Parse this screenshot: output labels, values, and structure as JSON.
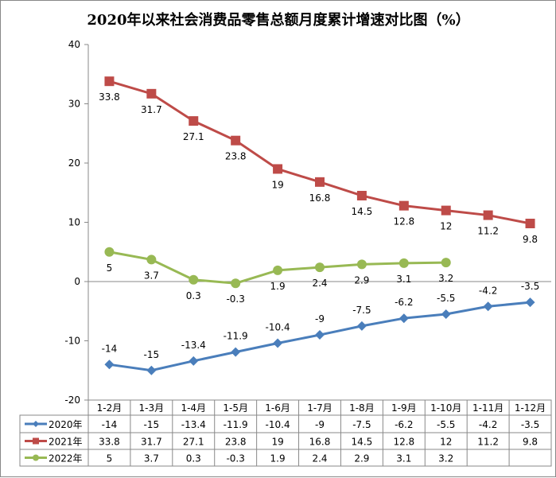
{
  "chart_data": {
    "type": "line",
    "title": "2020年以来社会消费品零售总额月度累计增速对比图（%）",
    "categories": [
      "1-2月",
      "1-3月",
      "1-4月",
      "1-5月",
      "1-6月",
      "1-7月",
      "1-8月",
      "1-9月",
      "1-10月",
      "1-11月",
      "1-12月"
    ],
    "ylim": [
      -20,
      40
    ],
    "yticks": [
      -20,
      -10,
      0,
      10,
      20,
      30,
      40
    ],
    "grid": false,
    "legend": "data-table",
    "series": [
      {
        "name": "2020年",
        "color": "#4a7ebb",
        "marker": "diamond",
        "values": [
          -14,
          -15,
          -13.4,
          -11.9,
          -10.4,
          -9,
          -7.5,
          -6.2,
          -5.5,
          -4.2,
          -3.5
        ]
      },
      {
        "name": "2021年",
        "color": "#be4b48",
        "marker": "square",
        "values": [
          33.8,
          31.7,
          27.1,
          23.8,
          19,
          16.8,
          14.5,
          12.8,
          12,
          11.2,
          9.8
        ]
      },
      {
        "name": "2022年",
        "color": "#98b954",
        "marker": "circle",
        "values": [
          5,
          3.7,
          0.3,
          -0.3,
          1.9,
          2.4,
          2.9,
          3.1,
          3.2,
          null,
          null
        ]
      }
    ]
  }
}
